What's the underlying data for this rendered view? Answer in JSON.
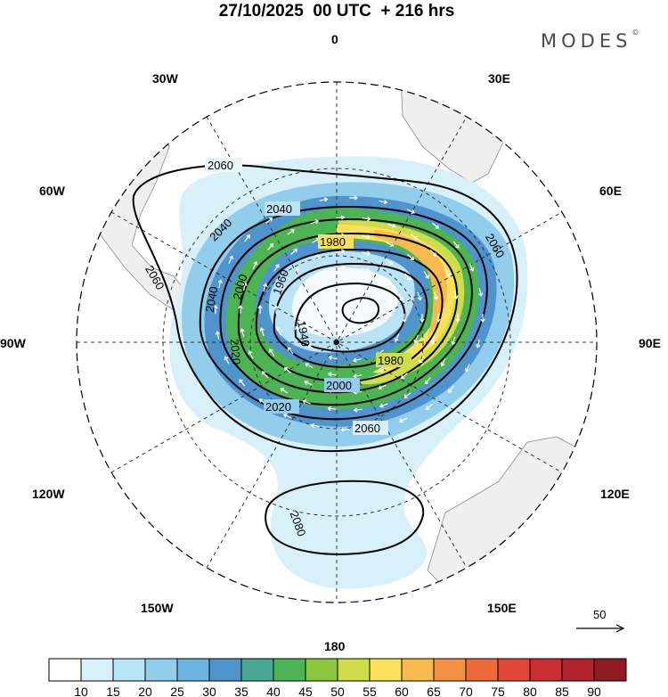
{
  "header": {
    "title": "27/10/2025  00 UTC  + 216 hrs",
    "brand": "MODES",
    "brand_mark": "©"
  },
  "map": {
    "projection": "south-polar-stereographic",
    "longitude_labels": {
      "top": "0",
      "bottom": "180",
      "left": "90W",
      "right": "90E",
      "upper_left": "30W",
      "upper_right": "30E",
      "mid_upper_left": "60W",
      "mid_upper_right": "60E",
      "mid_lower_left": "120W",
      "mid_lower_right": "120E",
      "lower_left": "150W",
      "lower_right": "150E"
    },
    "contour_labels": [
      "2060",
      "2040",
      "2040",
      "1980",
      "2060",
      "1960",
      "2000",
      "2060",
      "2040",
      "1940",
      "1980",
      "2020",
      "2000",
      "2020",
      "2060",
      "2080"
    ],
    "reference_vector": {
      "label": "50"
    }
  },
  "colorbar": {
    "ticks": [
      "10",
      "15",
      "20",
      "25",
      "30",
      "35",
      "40",
      "45",
      "50",
      "55",
      "60",
      "65",
      "70",
      "75",
      "80",
      "85",
      "90"
    ],
    "colors": [
      "#ffffff",
      "#d8f0fa",
      "#b8e4f6",
      "#92cdec",
      "#6eb3df",
      "#4f94cd",
      "#4aa790",
      "#4db454",
      "#8cc63f",
      "#cfdd4a",
      "#fbe05a",
      "#f8ba4f",
      "#f49043",
      "#ee6a3b",
      "#e2453a",
      "#cb2d34",
      "#b0222c",
      "#8e1c22"
    ]
  }
}
